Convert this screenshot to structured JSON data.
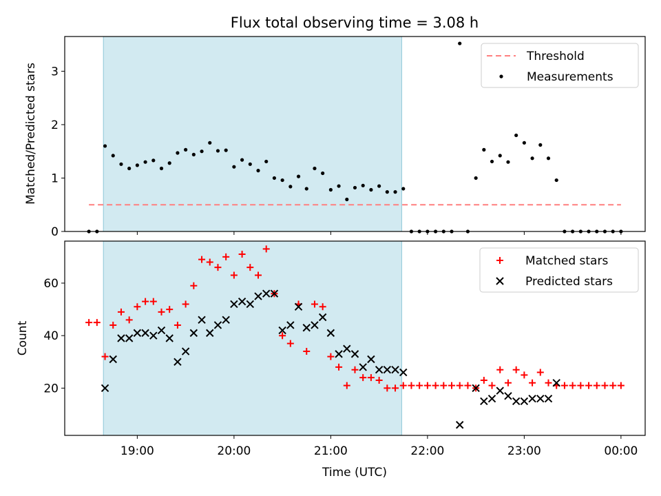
{
  "chart_data": [
    {
      "type": "scatter",
      "title": "Flux total observing time = 3.08 h",
      "xlabel": "",
      "ylabel": "Matched/Predicted stars",
      "xlim": [
        "18:15",
        "00:15"
      ],
      "ylim": [
        0,
        3.65
      ],
      "yticks": [
        0,
        1,
        2,
        3
      ],
      "shaded_span": [
        "18:39",
        "21:44"
      ],
      "shaded_color": "#add8e6",
      "legend_position": "upper-right",
      "series": [
        {
          "name": "Threshold",
          "kind": "dashed-line",
          "color": "#ff7f7f",
          "x": [
            "18:30",
            "24:00"
          ],
          "y": [
            0.5,
            0.5
          ]
        },
        {
          "name": "Measurements",
          "kind": "dot",
          "color": "#000000",
          "points": [
            [
              "18:30",
              0
            ],
            [
              "18:35",
              0
            ],
            [
              "18:40",
              1.6
            ],
            [
              "18:45",
              1.42
            ],
            [
              "18:50",
              1.26
            ],
            [
              "18:55",
              1.18
            ],
            [
              "19:00",
              1.24
            ],
            [
              "19:05",
              1.3
            ],
            [
              "19:10",
              1.33
            ],
            [
              "19:15",
              1.18
            ],
            [
              "19:20",
              1.28
            ],
            [
              "19:25",
              1.47
            ],
            [
              "19:30",
              1.53
            ],
            [
              "19:35",
              1.44
            ],
            [
              "19:40",
              1.5
            ],
            [
              "19:45",
              1.66
            ],
            [
              "19:50",
              1.51
            ],
            [
              "19:55",
              1.52
            ],
            [
              "20:00",
              1.21
            ],
            [
              "20:05",
              1.34
            ],
            [
              "20:10",
              1.26
            ],
            [
              "20:15",
              1.14
            ],
            [
              "20:20",
              1.31
            ],
            [
              "20:25",
              1.0
            ],
            [
              "20:30",
              0.96
            ],
            [
              "20:35",
              0.84
            ],
            [
              "20:40",
              1.03
            ],
            [
              "20:45",
              0.8
            ],
            [
              "20:50",
              1.18
            ],
            [
              "20:55",
              1.09
            ],
            [
              "21:00",
              0.78
            ],
            [
              "21:05",
              0.85
            ],
            [
              "21:10",
              0.6
            ],
            [
              "21:15",
              0.82
            ],
            [
              "21:20",
              0.86
            ],
            [
              "21:25",
              0.78
            ],
            [
              "21:30",
              0.85
            ],
            [
              "21:35",
              0.74
            ],
            [
              "21:40",
              0.74
            ],
            [
              "21:45",
              0.8
            ],
            [
              "21:50",
              0
            ],
            [
              "21:55",
              0
            ],
            [
              "22:00",
              0
            ],
            [
              "22:05",
              0
            ],
            [
              "22:10",
              0
            ],
            [
              "22:15",
              0
            ],
            [
              "22:20",
              3.52
            ],
            [
              "22:25",
              0
            ],
            [
              "22:30",
              1.0
            ],
            [
              "22:35",
              1.53
            ],
            [
              "22:40",
              1.31
            ],
            [
              "22:45",
              1.42
            ],
            [
              "22:50",
              1.3
            ],
            [
              "22:55",
              1.8
            ],
            [
              "23:00",
              1.66
            ],
            [
              "23:05",
              1.37
            ],
            [
              "23:10",
              1.62
            ],
            [
              "23:15",
              1.37
            ],
            [
              "23:20",
              0.96
            ],
            [
              "23:25",
              0
            ],
            [
              "23:30",
              0
            ],
            [
              "23:35",
              0
            ],
            [
              "23:40",
              0
            ],
            [
              "23:45",
              0
            ],
            [
              "23:50",
              0
            ],
            [
              "23:55",
              0
            ],
            [
              "24:00",
              0
            ]
          ]
        }
      ]
    },
    {
      "type": "scatter",
      "title": "",
      "xlabel": "Time (UTC)",
      "ylabel": "Count",
      "xlim": [
        "18:15",
        "00:15"
      ],
      "ylim": [
        2,
        76
      ],
      "yticks": [
        20,
        40,
        60
      ],
      "xticks": [
        "19:00",
        "20:00",
        "21:00",
        "22:00",
        "23:00",
        "00:00"
      ],
      "shaded_span": [
        "18:39",
        "21:44"
      ],
      "shaded_color": "#add8e6",
      "legend_position": "upper-right",
      "series": [
        {
          "name": "Matched stars",
          "kind": "plus",
          "color": "#ff0000",
          "points": [
            [
              "18:30",
              45
            ],
            [
              "18:35",
              45
            ],
            [
              "18:40",
              32
            ],
            [
              "18:45",
              44
            ],
            [
              "18:50",
              49
            ],
            [
              "18:55",
              46
            ],
            [
              "19:00",
              51
            ],
            [
              "19:05",
              53
            ],
            [
              "19:10",
              53
            ],
            [
              "19:15",
              49
            ],
            [
              "19:20",
              50
            ],
            [
              "19:25",
              44
            ],
            [
              "19:30",
              52
            ],
            [
              "19:35",
              59
            ],
            [
              "19:40",
              69
            ],
            [
              "19:45",
              68
            ],
            [
              "19:50",
              66
            ],
            [
              "19:55",
              70
            ],
            [
              "20:00",
              63
            ],
            [
              "20:05",
              71
            ],
            [
              "20:10",
              66
            ],
            [
              "20:15",
              63
            ],
            [
              "20:20",
              73
            ],
            [
              "20:25",
              56
            ],
            [
              "20:30",
              40
            ],
            [
              "20:35",
              37
            ],
            [
              "20:40",
              52
            ],
            [
              "20:45",
              34
            ],
            [
              "20:50",
              52
            ],
            [
              "20:55",
              51
            ],
            [
              "21:00",
              32
            ],
            [
              "21:05",
              28
            ],
            [
              "21:10",
              21
            ],
            [
              "21:15",
              27
            ],
            [
              "21:20",
              24
            ],
            [
              "21:25",
              24
            ],
            [
              "21:30",
              23
            ],
            [
              "21:35",
              20
            ],
            [
              "21:40",
              20
            ],
            [
              "21:45",
              21
            ],
            [
              "21:50",
              21
            ],
            [
              "21:55",
              21
            ],
            [
              "22:00",
              21
            ],
            [
              "22:05",
              21
            ],
            [
              "22:10",
              21
            ],
            [
              "22:15",
              21
            ],
            [
              "22:20",
              21
            ],
            [
              "22:25",
              21
            ],
            [
              "22:30",
              20
            ],
            [
              "22:35",
              23
            ],
            [
              "22:40",
              21
            ],
            [
              "22:45",
              27
            ],
            [
              "22:50",
              22
            ],
            [
              "22:55",
              27
            ],
            [
              "23:00",
              25
            ],
            [
              "23:05",
              22
            ],
            [
              "23:10",
              26
            ],
            [
              "23:15",
              22
            ],
            [
              "23:20",
              21
            ],
            [
              "23:25",
              21
            ],
            [
              "23:30",
              21
            ],
            [
              "23:35",
              21
            ],
            [
              "23:40",
              21
            ],
            [
              "23:45",
              21
            ],
            [
              "23:50",
              21
            ],
            [
              "23:55",
              21
            ],
            [
              "24:00",
              21
            ]
          ]
        },
        {
          "name": "Predicted stars",
          "kind": "cross",
          "color": "#000000",
          "points": [
            [
              "18:40",
              20
            ],
            [
              "18:45",
              31
            ],
            [
              "18:50",
              39
            ],
            [
              "18:55",
              39
            ],
            [
              "19:00",
              41
            ],
            [
              "19:05",
              41
            ],
            [
              "19:10",
              40
            ],
            [
              "19:15",
              42
            ],
            [
              "19:20",
              39
            ],
            [
              "19:25",
              30
            ],
            [
              "19:30",
              34
            ],
            [
              "19:35",
              41
            ],
            [
              "19:40",
              46
            ],
            [
              "19:45",
              41
            ],
            [
              "19:50",
              44
            ],
            [
              "19:55",
              46
            ],
            [
              "20:00",
              52
            ],
            [
              "20:05",
              53
            ],
            [
              "20:10",
              52
            ],
            [
              "20:15",
              55
            ],
            [
              "20:20",
              56
            ],
            [
              "20:25",
              56
            ],
            [
              "20:30",
              42
            ],
            [
              "20:35",
              44
            ],
            [
              "20:40",
              51
            ],
            [
              "20:45",
              43
            ],
            [
              "20:50",
              44
            ],
            [
              "20:55",
              47
            ],
            [
              "21:00",
              41
            ],
            [
              "21:05",
              33
            ],
            [
              "21:10",
              35
            ],
            [
              "21:15",
              33
            ],
            [
              "21:20",
              28
            ],
            [
              "21:25",
              31
            ],
            [
              "21:30",
              27
            ],
            [
              "21:35",
              27
            ],
            [
              "21:40",
              27
            ],
            [
              "21:45",
              26
            ],
            [
              "22:20",
              6
            ],
            [
              "22:30",
              20
            ],
            [
              "22:35",
              15
            ],
            [
              "22:40",
              16
            ],
            [
              "22:45",
              19
            ],
            [
              "22:50",
              17
            ],
            [
              "22:55",
              15
            ],
            [
              "23:00",
              15
            ],
            [
              "23:05",
              16
            ],
            [
              "23:10",
              16
            ],
            [
              "23:15",
              16
            ],
            [
              "23:20",
              22
            ]
          ]
        }
      ]
    }
  ]
}
